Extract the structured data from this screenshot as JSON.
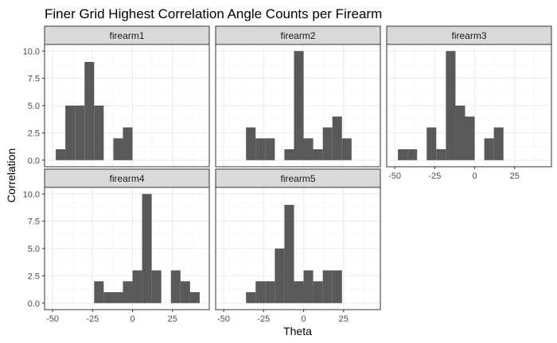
{
  "chart_data": {
    "type": "bar",
    "title": "Finer Grid Highest Correlation Angle Counts per Firearm",
    "xlabel": "Theta",
    "ylabel": "Correlation",
    "xlim": [
      -55,
      48
    ],
    "ylim": [
      -0.6,
      10.6
    ],
    "x_ticks": [
      -50,
      -25,
      0,
      25
    ],
    "x_tick_labels": [
      "-50",
      "-25",
      "0",
      "25"
    ],
    "y_ticks": [
      0,
      2.5,
      5,
      7.5,
      10
    ],
    "y_tick_labels": [
      "0.0",
      "2.5",
      "5.0",
      "7.5",
      "10.0"
    ],
    "bin_width": 6,
    "grid": true,
    "colors": {
      "bar": "#595959",
      "strip_bg": "#d9d9d9",
      "panel_border": "#333333",
      "grid_major": "#ebebeb",
      "grid_minor": "#f4f4f4"
    },
    "panels": [
      {
        "name": "firearm1",
        "bins": [
          [
            -45,
            1
          ],
          [
            -39,
            5
          ],
          [
            -33,
            5
          ],
          [
            -27,
            9
          ],
          [
            -21,
            5
          ],
          [
            -9,
            2
          ],
          [
            -3,
            3
          ]
        ]
      },
      {
        "name": "firearm2",
        "bins": [
          [
            -33,
            3
          ],
          [
            -27,
            2
          ],
          [
            -21,
            2
          ],
          [
            -9,
            1
          ],
          [
            -3,
            10
          ],
          [
            3,
            2
          ],
          [
            9,
            1
          ],
          [
            15,
            3
          ],
          [
            21,
            4
          ],
          [
            27,
            2
          ]
        ]
      },
      {
        "name": "firearm3",
        "bins": [
          [
            -45,
            1
          ],
          [
            -39,
            1
          ],
          [
            -27,
            3
          ],
          [
            -21,
            1
          ],
          [
            -15,
            10
          ],
          [
            -9,
            5
          ],
          [
            -3,
            4
          ],
          [
            9,
            2
          ],
          [
            15,
            3
          ]
        ]
      },
      {
        "name": "firearm4",
        "bins": [
          [
            -21,
            2
          ],
          [
            -15,
            1
          ],
          [
            -9,
            1
          ],
          [
            -3,
            2
          ],
          [
            3,
            3
          ],
          [
            9,
            10
          ],
          [
            15,
            3
          ],
          [
            27,
            3
          ],
          [
            33,
            2
          ],
          [
            39,
            1
          ]
        ]
      },
      {
        "name": "firearm5",
        "bins": [
          [
            -33,
            1
          ],
          [
            -27,
            2
          ],
          [
            -21,
            2
          ],
          [
            -15,
            5
          ],
          [
            -9,
            9
          ],
          [
            -3,
            2
          ],
          [
            3,
            3
          ],
          [
            9,
            2
          ],
          [
            15,
            3
          ],
          [
            21,
            3
          ]
        ]
      }
    ]
  }
}
